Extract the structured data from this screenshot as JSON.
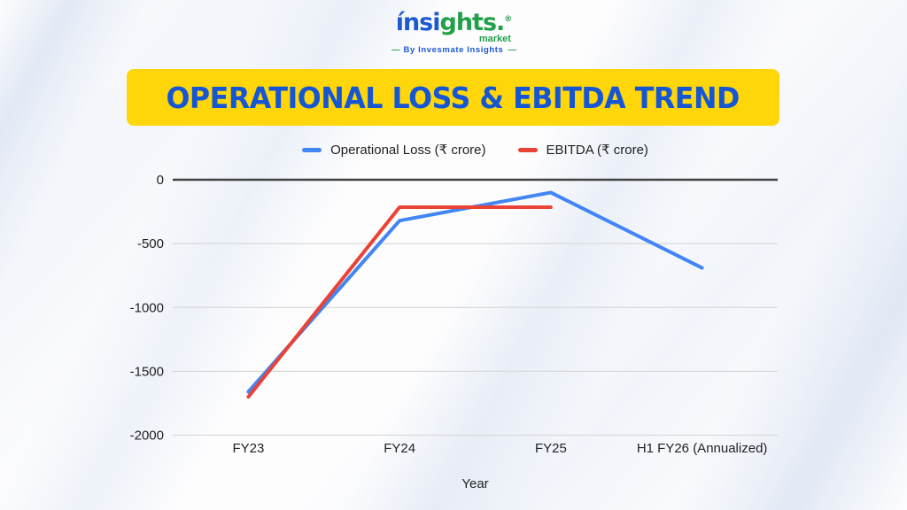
{
  "logo": {
    "part1": "ínsi",
    "part2": "ghts.",
    "registered": "®",
    "market": "market",
    "byline": "By Invesmate Insights",
    "dash": "—",
    "blue": "#1d59d0",
    "green": "#21a049"
  },
  "banner": {
    "title": "OPERATIONAL LOSS & EBITDA TREND",
    "bg_color": "#FFD60A",
    "text_color": "#1556D4"
  },
  "legend": [
    {
      "label": "Operational Loss (₹ crore)",
      "color": "#4285F4"
    },
    {
      "label": "EBITDA (₹ crore)",
      "color": "#EA4335"
    }
  ],
  "chart_data": {
    "type": "line",
    "categories": [
      "FY23",
      "FY24",
      "FY25",
      "H1 FY26 (Annualized)"
    ],
    "series": [
      {
        "name": "Operational Loss (₹ crore)",
        "color": "#4285F4",
        "values": [
          -1660,
          -320,
          -100,
          -690
        ]
      },
      {
        "name": "EBITDA (₹ crore)",
        "color": "#EA4335",
        "values": [
          -1700,
          -215,
          -215,
          null
        ]
      }
    ],
    "title": "OPERATIONAL LOSS & EBITDA TREND",
    "xlabel": "Year",
    "ylabel": "",
    "yticks": [
      0,
      -500,
      -1000,
      -1500,
      -2000
    ],
    "ylim": [
      -2000,
      0
    ],
    "grid": true,
    "legend_position": "top",
    "grid_color": "#d9d9d9",
    "zero_axis_color": "#424242",
    "axis_text_color": "#202124"
  }
}
